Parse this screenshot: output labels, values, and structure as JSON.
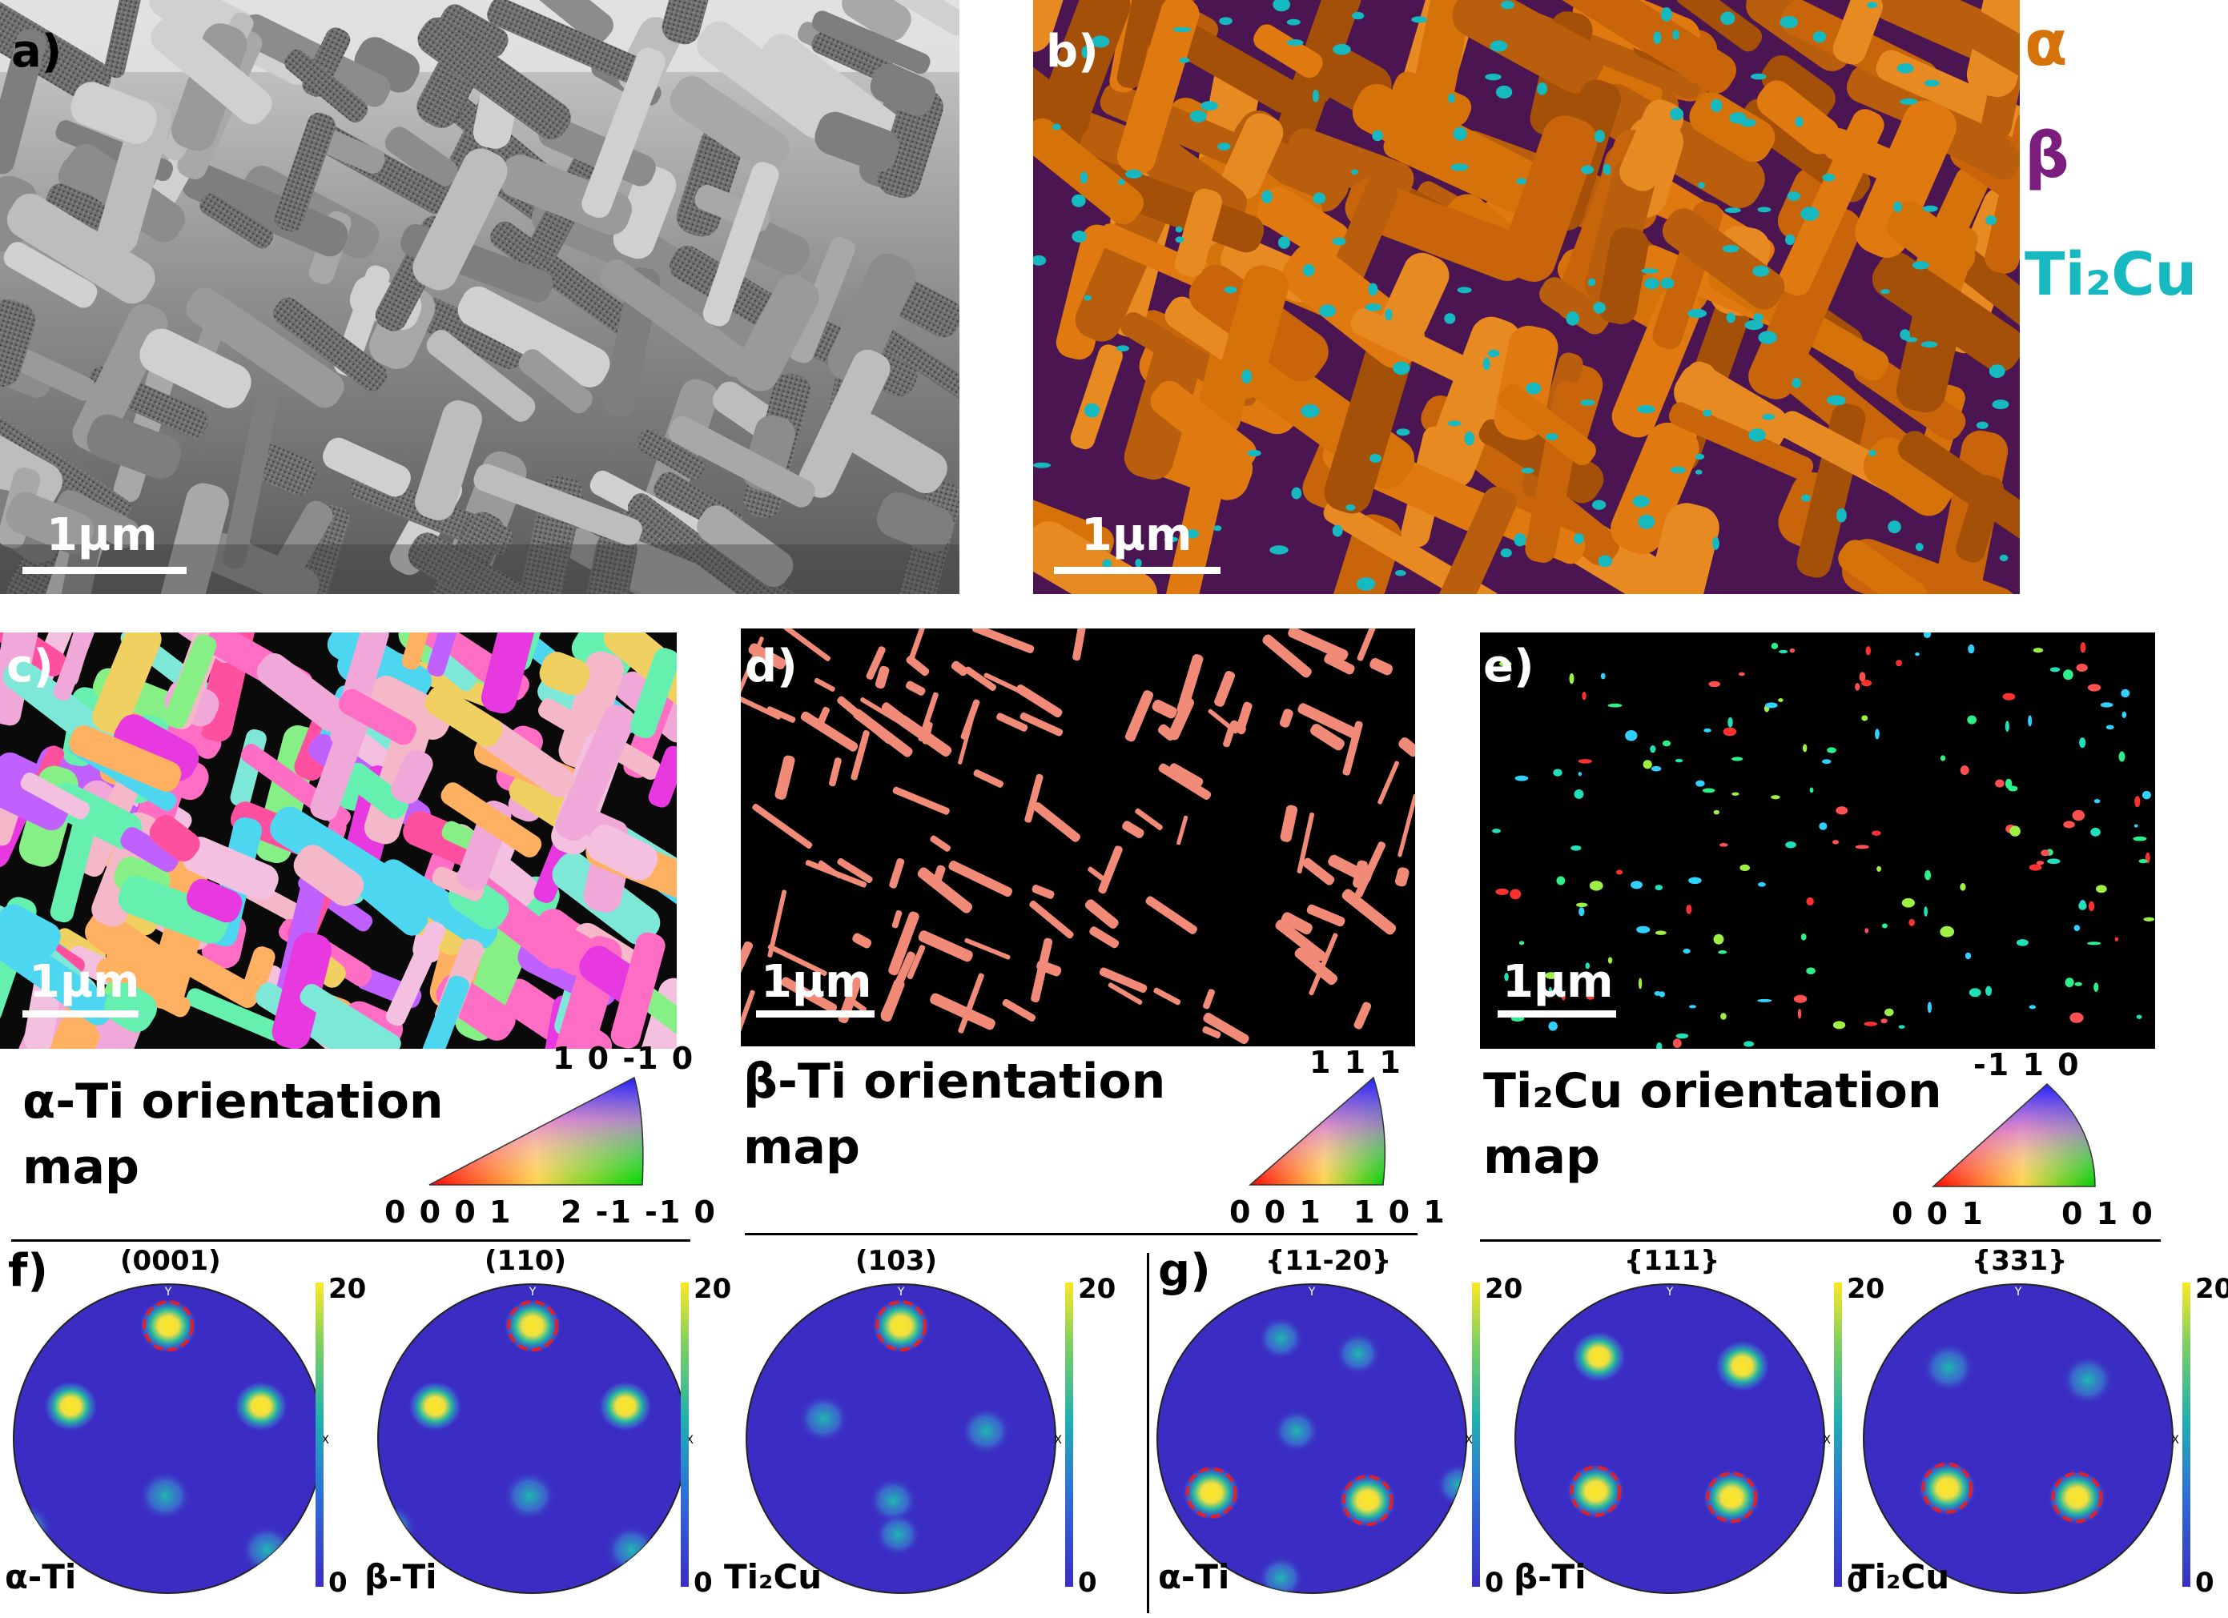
{
  "panels": {
    "a": {
      "letter": "a)",
      "scale": "1µm"
    },
    "b": {
      "letter": "b)",
      "scale": "1µm",
      "legend": [
        {
          "label": "α",
          "color": "#d6720a"
        },
        {
          "label": "β",
          "color": "#7b1d7e"
        },
        {
          "label": "Ti₂Cu",
          "color": "#15b9bf"
        }
      ]
    },
    "c": {
      "letter": "c)",
      "scale": "1µm",
      "caption_line1": "α-Ti orientation",
      "caption_line2": "map",
      "ipf": {
        "top": "1 0 -1 0",
        "left": "0 0 0 1",
        "right": "2 -1 -1 0"
      }
    },
    "d": {
      "letter": "d)",
      "scale": "1µm",
      "caption_line1": "β-Ti orientation",
      "caption_line2": "map",
      "ipf": {
        "top": "1 1 1",
        "left": "0 0 1",
        "right": "1 0 1"
      }
    },
    "e": {
      "letter": "e)",
      "scale": "1µm",
      "caption_line1": "Ti₂Cu orientation",
      "caption_line2": "map",
      "ipf": {
        "top": "-1 1 0",
        "left": "0 0 1",
        "right": "0 1 0"
      }
    },
    "f": {
      "letter": "f)",
      "pole_figures": [
        {
          "title": "(0001)",
          "phase": "α-Ti"
        },
        {
          "title": "(110)",
          "phase": "β-Ti"
        },
        {
          "title": "(103)",
          "phase": "Ti₂Cu"
        }
      ]
    },
    "g": {
      "letter": "g)",
      "pole_figures": [
        {
          "title": "{11-20}",
          "phase": "α-Ti"
        },
        {
          "title": "{111}",
          "phase": "β-Ti"
        },
        {
          "title": "{331}",
          "phase": "Ti₂Cu"
        }
      ]
    }
  },
  "colorbar": {
    "max": "20",
    "min": "0"
  },
  "axis_marks": {
    "y": "Y",
    "x": "X"
  },
  "colors": {
    "pf_background": "#3b2dc4",
    "pf_peak": "#fde725",
    "highlight_circle": "#e0202a"
  }
}
